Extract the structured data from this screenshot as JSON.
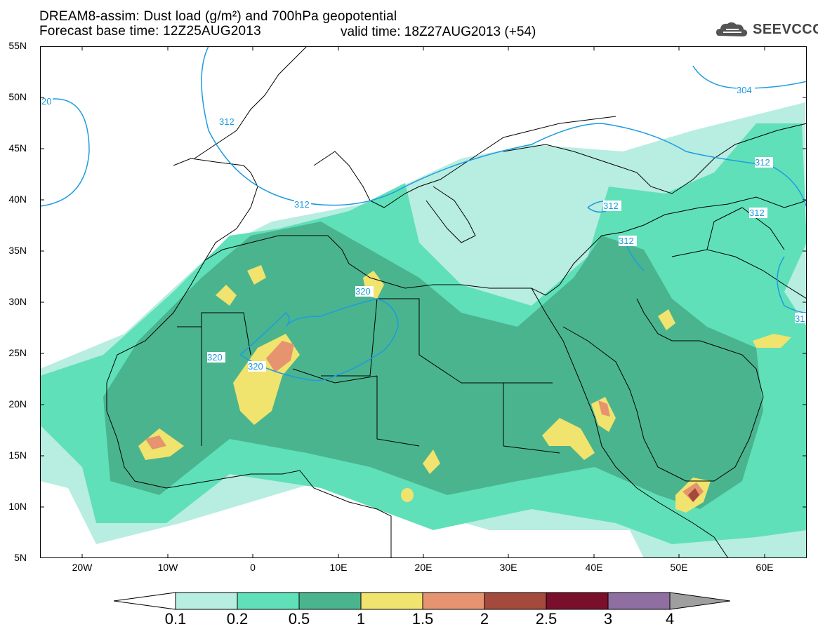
{
  "header": {
    "line1": "DREAM8-assim: Dust load (g/m²) and 700hPa geopotential",
    "line2_base": "Forecast base time: 12Z25AUG2013",
    "line2_valid": "valid time: 18Z27AUG2013 (+54)"
  },
  "logo": {
    "text": "SEEVCCC",
    "icon": "cloud-icon"
  },
  "map": {
    "lat_labels": [
      "55N",
      "50N",
      "45N",
      "40N",
      "35N",
      "30N",
      "25N",
      "20N",
      "15N",
      "10N",
      "5N"
    ],
    "lon_labels": [
      "20W",
      "10W",
      "0",
      "10E",
      "20E",
      "30E",
      "40E",
      "50E",
      "60E"
    ],
    "contour_labels": [
      "20",
      "312",
      "312",
      "312",
      "312",
      "312",
      "304",
      "312",
      "320",
      "320",
      "320",
      "31"
    ]
  },
  "colorbar": {
    "labels": [
      "0.1",
      "0.2",
      "0.5",
      "1",
      "1.5",
      "2",
      "2.5",
      "3",
      "4"
    ],
    "colors": [
      "#ffffff",
      "#b8ede1",
      "#5fe0b9",
      "#4ab48e",
      "#f0e36e",
      "#e69370",
      "#a34a3c",
      "#7a0f2b",
      "#8f6ea1",
      "#9f9f9f"
    ]
  }
}
